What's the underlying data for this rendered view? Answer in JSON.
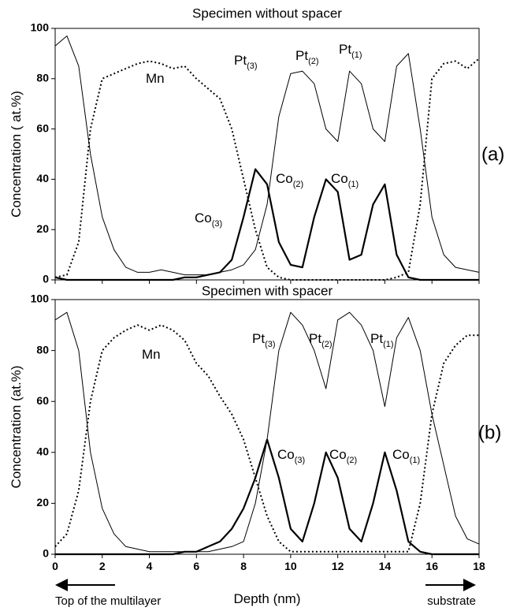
{
  "chart_data": [
    {
      "type": "line",
      "title": "Specimen without spacer",
      "ylabel": "Concentration ( at.%)",
      "panel_label": "(a)",
      "xlim": [
        0,
        18
      ],
      "xticks": [
        0,
        2,
        4,
        6,
        8,
        10,
        12,
        14,
        16,
        18
      ],
      "xtick_labels": false,
      "ylim": [
        0,
        100
      ],
      "yticks": [
        0,
        20,
        40,
        60,
        80,
        100
      ],
      "x": [
        0,
        0.5,
        1,
        1.5,
        2,
        2.5,
        3,
        3.5,
        4,
        4.5,
        5,
        5.5,
        6,
        6.5,
        7,
        7.5,
        8,
        8.5,
        9,
        9.5,
        10,
        10.5,
        11,
        11.5,
        12,
        12.5,
        13,
        13.5,
        14,
        14.5,
        15,
        15.5,
        16,
        16.5,
        17,
        17.5,
        18
      ],
      "series": [
        {
          "color": "#000",
          "width": 1,
          "values": [
            93,
            97,
            85,
            50,
            25,
            12,
            5,
            3,
            3,
            4,
            3,
            2,
            2,
            2,
            3,
            4,
            6,
            12,
            30,
            65,
            82,
            83,
            78,
            60,
            55,
            83,
            78,
            60,
            55,
            85,
            90,
            60,
            25,
            10,
            5,
            4,
            3
          ]
        },
        {
          "color": "#000",
          "width": 2.2,
          "values": [
            1,
            0,
            0,
            0,
            0,
            0,
            0,
            0,
            0,
            0,
            0,
            1,
            1,
            2,
            3,
            8,
            25,
            44,
            38,
            15,
            6,
            5,
            25,
            40,
            35,
            8,
            10,
            30,
            38,
            10,
            1,
            0,
            0,
            0,
            0,
            0,
            0
          ]
        },
        {
          "color": "#000",
          "width": 2,
          "dash": "2,3",
          "values": [
            1,
            2,
            15,
            60,
            80,
            82,
            84,
            86,
            87,
            86,
            84,
            85,
            80,
            76,
            72,
            60,
            40,
            20,
            5,
            1,
            0,
            0,
            0,
            0,
            0,
            0,
            0,
            0,
            0,
            1,
            3,
            30,
            80,
            86,
            87,
            84,
            88
          ]
        }
      ],
      "annotations": [
        {
          "text": "Mn"
        },
        {
          "text": "Pt",
          "sub": "(3)"
        },
        {
          "text": "Pt",
          "sub": "(2)"
        },
        {
          "text": "Pt",
          "sub": "(1)"
        },
        {
          "text": "Co",
          "sub": "(3)"
        },
        {
          "text": "Co",
          "sub": "(2)"
        },
        {
          "text": "Co",
          "sub": "(1)"
        }
      ]
    },
    {
      "type": "line",
      "title": "Specimen with spacer",
      "ylabel": "Concentration (at.%)",
      "xlabel": "Depth (nm)",
      "panel_label": "(b)",
      "xlim": [
        0,
        18
      ],
      "xticks": [
        0,
        2,
        4,
        6,
        8,
        10,
        12,
        14,
        16,
        18
      ],
      "xtick_labels": true,
      "ylim": [
        0,
        100
      ],
      "yticks": [
        0,
        20,
        40,
        60,
        80,
        100
      ],
      "x": [
        0,
        0.5,
        1,
        1.5,
        2,
        2.5,
        3,
        3.5,
        4,
        4.5,
        5,
        5.5,
        6,
        6.5,
        7,
        7.5,
        8,
        8.5,
        9,
        9.5,
        10,
        10.5,
        11,
        11.5,
        12,
        12.5,
        13,
        13.5,
        14,
        14.5,
        15,
        15.5,
        16,
        16.5,
        17,
        17.5,
        18
      ],
      "series": [
        {
          "color": "#000",
          "width": 1,
          "values": [
            92,
            95,
            80,
            40,
            18,
            8,
            3,
            2,
            1,
            1,
            1,
            1,
            1,
            1,
            2,
            3,
            5,
            20,
            45,
            80,
            95,
            90,
            80,
            65,
            92,
            95,
            90,
            80,
            58,
            85,
            93,
            80,
            55,
            35,
            15,
            6,
            4
          ]
        },
        {
          "color": "#000",
          "width": 2.2,
          "values": [
            0,
            0,
            0,
            0,
            0,
            0,
            0,
            0,
            0,
            0,
            0,
            1,
            1,
            3,
            5,
            10,
            18,
            30,
            45,
            30,
            10,
            5,
            20,
            40,
            30,
            10,
            5,
            20,
            40,
            25,
            5,
            1,
            0,
            0,
            0,
            0,
            0
          ]
        },
        {
          "color": "#000",
          "width": 2,
          "dash": "2,3",
          "values": [
            3,
            8,
            25,
            60,
            80,
            85,
            88,
            90,
            88,
            90,
            88,
            84,
            75,
            70,
            62,
            55,
            45,
            30,
            15,
            5,
            1,
            1,
            1,
            1,
            1,
            1,
            1,
            1,
            1,
            1,
            1,
            20,
            55,
            75,
            82,
            86,
            86
          ]
        }
      ],
      "annotations": [
        {
          "text": "Mn"
        },
        {
          "text": "Pt",
          "sub": "(3)"
        },
        {
          "text": "Pt",
          "sub": "(2)"
        },
        {
          "text": "Pt",
          "sub": "(1)"
        },
        {
          "text": "Co",
          "sub": "(3)"
        },
        {
          "text": "Co",
          "sub": "(2)"
        },
        {
          "text": "Co",
          "sub": "(1)"
        }
      ],
      "notes": [
        "Top of the multilayer",
        "substrate"
      ]
    }
  ]
}
